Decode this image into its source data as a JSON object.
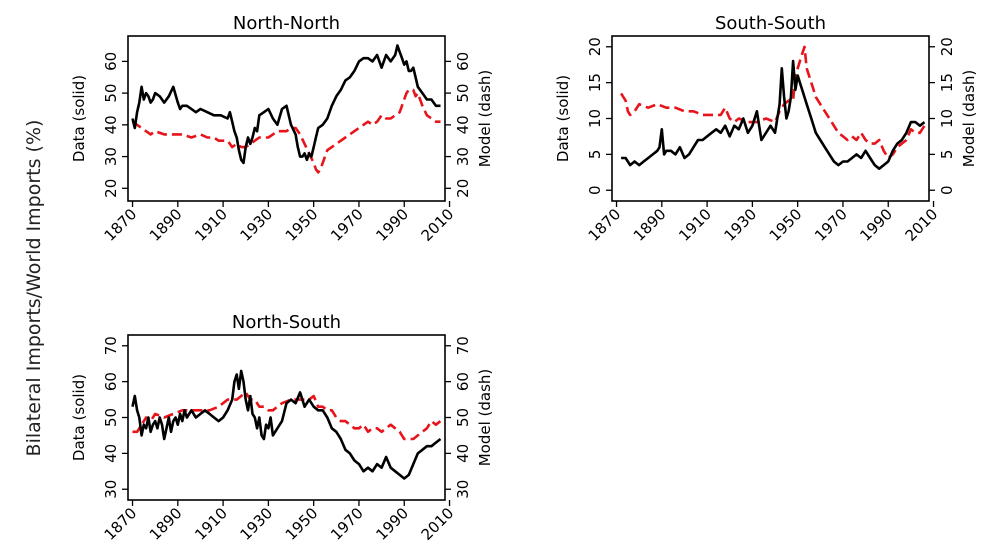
{
  "figure": {
    "y_title": "Bilateral Imports/World Imports (%)"
  },
  "chart_data": [
    {
      "type": "line",
      "title": "North-North",
      "ylabel_left": "Data (solid)",
      "ylabel_right": "Model (dash)",
      "xlim": [
        1868,
        2008
      ],
      "ylim": [
        16,
        68
      ],
      "xticks": [
        1870,
        1890,
        1910,
        1930,
        1950,
        1970,
        1990,
        2010
      ],
      "yticks_left": [
        20,
        30,
        40,
        50,
        60
      ],
      "yticks_right": [
        20,
        30,
        40,
        50,
        60
      ],
      "series": [
        {
          "name": "Data (solid)",
          "color": "#000000",
          "style": "solid",
          "x": [
            1870,
            1871,
            1872,
            1873,
            1874,
            1875,
            1876,
            1877,
            1878,
            1879,
            1880,
            1882,
            1884,
            1886,
            1888,
            1890,
            1891,
            1892,
            1894,
            1896,
            1898,
            1900,
            1903,
            1906,
            1909,
            1912,
            1913,
            1914,
            1915,
            1916,
            1917,
            1918,
            1919,
            1920,
            1921,
            1922,
            1923,
            1924,
            1925,
            1926,
            1928,
            1930,
            1932,
            1934,
            1936,
            1938,
            1940,
            1942,
            1943,
            1944,
            1945,
            1946,
            1947,
            1948,
            1949,
            1950,
            1951,
            1952,
            1954,
            1956,
            1958,
            1960,
            1962,
            1964,
            1966,
            1968,
            1970,
            1972,
            1974,
            1976,
            1978,
            1980,
            1982,
            1984,
            1986,
            1987,
            1988,
            1989,
            1990,
            1991,
            1992,
            1993,
            1994,
            1995,
            1996,
            1998,
            2000,
            2002,
            2004,
            2006
          ],
          "y": [
            42,
            39,
            44,
            47,
            52,
            48,
            50,
            49,
            47,
            48,
            50,
            49,
            47,
            49,
            52,
            47,
            45,
            46,
            46,
            45,
            44,
            45,
            44,
            43,
            43,
            42,
            44,
            41,
            38,
            36,
            32,
            29,
            28,
            33,
            36,
            34,
            36,
            39,
            38,
            43,
            44,
            45,
            42,
            40,
            45,
            46,
            40,
            37,
            33,
            30,
            30,
            31,
            29,
            31,
            30,
            33,
            36,
            39,
            40,
            42,
            46,
            49,
            51,
            54,
            55,
            57,
            60,
            61,
            61,
            60,
            62,
            58,
            62,
            60,
            62,
            65,
            63,
            61,
            59,
            60,
            57,
            57,
            58,
            55,
            52,
            50,
            48,
            48,
            46,
            46
          ]
        },
        {
          "name": "Model (dash)",
          "color": "#e8141b",
          "style": "dashed",
          "x": [
            1870,
            1872,
            1874,
            1876,
            1878,
            1880,
            1884,
            1888,
            1892,
            1896,
            1900,
            1903,
            1906,
            1908,
            1910,
            1912,
            1914,
            1916,
            1918,
            1920,
            1922,
            1924,
            1926,
            1928,
            1930,
            1932,
            1934,
            1936,
            1938,
            1940,
            1942,
            1944,
            1946,
            1948,
            1950,
            1951,
            1952,
            1953,
            1954,
            1956,
            1958,
            1960,
            1962,
            1964,
            1966,
            1968,
            1970,
            1972,
            1974,
            1976,
            1978,
            1980,
            1982,
            1984,
            1986,
            1988,
            1990,
            1991,
            1992,
            1994,
            1995,
            1996,
            1998,
            2000,
            2002,
            2004,
            2006
          ],
          "y": [
            41,
            40,
            39,
            38,
            37,
            38,
            37,
            37,
            37,
            36,
            37,
            36,
            36,
            35,
            35,
            35,
            33,
            34,
            33,
            33,
            34,
            35,
            36,
            36,
            36,
            37,
            38,
            38,
            38,
            39,
            39,
            37,
            34,
            31,
            28,
            26,
            25,
            26,
            28,
            32,
            33,
            34,
            35,
            36,
            37,
            38,
            39,
            40,
            41,
            40,
            41,
            43,
            42,
            42,
            43,
            44,
            48,
            50,
            51,
            51,
            49,
            50,
            46,
            43,
            42,
            41,
            41
          ]
        }
      ]
    },
    {
      "type": "line",
      "title": "South-South",
      "ylabel_left": "Data (solid)",
      "ylabel_right": "Model (dash)",
      "xlim": [
        1868,
        2008
      ],
      "ylim": [
        -1.5,
        21.5
      ],
      "xticks": [
        1870,
        1890,
        1910,
        1930,
        1950,
        1970,
        1990,
        2010
      ],
      "yticks_left": [
        0,
        5,
        10,
        15,
        20
      ],
      "yticks_right": [
        0,
        5,
        10,
        15,
        20
      ],
      "series": [
        {
          "name": "Data (solid)",
          "color": "#000000",
          "style": "solid",
          "x": [
            1872,
            1874,
            1876,
            1878,
            1880,
            1882,
            1884,
            1886,
            1888,
            1889,
            1890,
            1891,
            1892,
            1894,
            1896,
            1898,
            1900,
            1902,
            1904,
            1906,
            1908,
            1910,
            1912,
            1914,
            1916,
            1918,
            1920,
            1922,
            1924,
            1926,
            1928,
            1930,
            1932,
            1934,
            1936,
            1938,
            1940,
            1941,
            1942,
            1943,
            1944,
            1945,
            1946,
            1947,
            1948,
            1949,
            1950,
            1951,
            1952,
            1954,
            1956,
            1958,
            1960,
            1962,
            1964,
            1966,
            1968,
            1970,
            1972,
            1974,
            1976,
            1978,
            1980,
            1982,
            1984,
            1986,
            1988,
            1990,
            1992,
            1994,
            1996,
            1998,
            2000,
            2002,
            2004,
            2006
          ],
          "y": [
            4.5,
            4.5,
            3.5,
            4,
            3.5,
            4,
            4.5,
            5,
            5.5,
            6,
            8.5,
            5,
            5.5,
            5.5,
            5,
            6,
            4.5,
            5,
            6,
            7,
            7,
            7.5,
            8,
            8.5,
            8,
            9,
            7.5,
            9,
            8.5,
            10,
            8,
            9,
            11,
            7,
            8,
            9,
            8,
            10,
            12,
            17,
            13,
            10,
            11,
            13,
            18,
            14,
            16,
            15,
            14,
            12,
            10,
            8,
            7,
            6,
            5,
            4,
            3.5,
            4,
            4,
            4.5,
            5,
            4.5,
            5.5,
            4.5,
            3.5,
            3,
            3.5,
            4,
            5.5,
            6.5,
            7,
            8,
            9.5,
            9.5,
            9,
            9.5
          ]
        },
        {
          "name": "Model (dash)",
          "color": "#e8141b",
          "style": "dashed",
          "x": [
            1872,
            1873,
            1874,
            1875,
            1876,
            1878,
            1880,
            1884,
            1888,
            1892,
            1896,
            1900,
            1904,
            1908,
            1912,
            1916,
            1918,
            1920,
            1922,
            1924,
            1928,
            1932,
            1936,
            1940,
            1942,
            1944,
            1946,
            1948,
            1949,
            1950,
            1951,
            1952,
            1953,
            1954,
            1956,
            1958,
            1960,
            1962,
            1964,
            1966,
            1968,
            1970,
            1972,
            1974,
            1976,
            1978,
            1980,
            1982,
            1984,
            1986,
            1988,
            1990,
            1992,
            1994,
            1996,
            1998,
            2000,
            2002,
            2004,
            2006
          ],
          "y": [
            13.5,
            13,
            12.5,
            11,
            10.5,
            11,
            12,
            11.5,
            12,
            11.5,
            11.5,
            11,
            11,
            10.5,
            10.5,
            10.5,
            11.5,
            10,
            9.5,
            10,
            9.5,
            9.5,
            10,
            9.5,
            11,
            12,
            12.5,
            12.5,
            16,
            17,
            18,
            19,
            20,
            17,
            15,
            13,
            12,
            11,
            10,
            9,
            8,
            7.5,
            7,
            7.5,
            7,
            8,
            7,
            6.5,
            6.5,
            7,
            5.5,
            4.5,
            5,
            6,
            6.5,
            7,
            8.5,
            8,
            8,
            9
          ]
        }
      ]
    },
    {
      "type": "line",
      "title": "North-South",
      "ylabel_left": "Data (solid)",
      "ylabel_right": "Model (dash)",
      "xlim": [
        1868,
        2008
      ],
      "ylim": [
        27,
        73
      ],
      "xticks": [
        1870,
        1890,
        1910,
        1930,
        1950,
        1970,
        1990,
        2010
      ],
      "yticks_left": [
        30,
        40,
        50,
        60,
        70
      ],
      "yticks_right": [
        30,
        40,
        50,
        60,
        70
      ],
      "series": [
        {
          "name": "Data (solid)",
          "color": "#000000",
          "style": "solid",
          "x": [
            1870,
            1871,
            1872,
            1873,
            1874,
            1875,
            1876,
            1877,
            1878,
            1879,
            1880,
            1881,
            1882,
            1883,
            1884,
            1885,
            1886,
            1887,
            1888,
            1889,
            1890,
            1891,
            1892,
            1893,
            1894,
            1896,
            1898,
            1900,
            1902,
            1904,
            1906,
            1908,
            1910,
            1912,
            1914,
            1915,
            1916,
            1917,
            1918,
            1919,
            1920,
            1921,
            1922,
            1923,
            1924,
            1925,
            1926,
            1927,
            1928,
            1929,
            1930,
            1931,
            1932,
            1934,
            1936,
            1938,
            1940,
            1942,
            1944,
            1946,
            1948,
            1950,
            1952,
            1954,
            1956,
            1958,
            1960,
            1962,
            1964,
            1966,
            1968,
            1970,
            1972,
            1974,
            1976,
            1978,
            1980,
            1982,
            1984,
            1986,
            1988,
            1990,
            1992,
            1994,
            1996,
            1998,
            2000,
            2002,
            2004,
            2006
          ],
          "y": [
            53,
            56,
            52,
            50,
            45,
            48,
            47,
            50,
            46,
            48,
            49,
            47,
            50,
            48,
            44,
            47,
            50,
            46,
            49,
            50,
            48,
            51,
            49,
            52,
            50,
            52,
            50,
            51,
            52,
            51,
            50,
            49,
            50,
            52,
            55,
            60,
            62,
            58,
            63,
            60,
            55,
            52,
            56,
            51,
            50,
            47,
            50,
            45,
            44,
            48,
            47,
            50,
            45,
            47,
            49,
            54,
            55,
            54,
            57,
            53,
            55,
            53,
            52,
            52,
            50,
            47,
            46,
            44,
            41,
            40,
            38,
            37,
            35,
            36,
            35,
            37,
            36,
            39,
            36,
            35,
            34,
            33,
            34,
            37,
            40,
            41,
            42,
            42,
            43,
            44
          ]
        },
        {
          "name": "Model (dash)",
          "color": "#e8141b",
          "style": "dashed",
          "x": [
            1870,
            1872,
            1874,
            1876,
            1878,
            1880,
            1884,
            1888,
            1892,
            1896,
            1900,
            1904,
            1908,
            1912,
            1914,
            1916,
            1918,
            1920,
            1922,
            1924,
            1926,
            1928,
            1930,
            1932,
            1934,
            1936,
            1940,
            1944,
            1948,
            1950,
            1952,
            1954,
            1956,
            1958,
            1960,
            1962,
            1964,
            1966,
            1968,
            1970,
            1972,
            1974,
            1976,
            1978,
            1980,
            1982,
            1984,
            1986,
            1988,
            1990,
            1992,
            1994,
            1996,
            1998,
            2000,
            2002,
            2004,
            2006
          ],
          "y": [
            46,
            46,
            48,
            50,
            49,
            51,
            50,
            51,
            52,
            52,
            52,
            52,
            53,
            55,
            55,
            55,
            56,
            57,
            55,
            55,
            53,
            53,
            52,
            52,
            53,
            54,
            55,
            55,
            55,
            56,
            53,
            53,
            52,
            52,
            50,
            49,
            49,
            48,
            47,
            47,
            48,
            46,
            47,
            47,
            46,
            47,
            48,
            47,
            46,
            44,
            44,
            44,
            45,
            46,
            47,
            49,
            48,
            49
          ]
        }
      ]
    }
  ]
}
